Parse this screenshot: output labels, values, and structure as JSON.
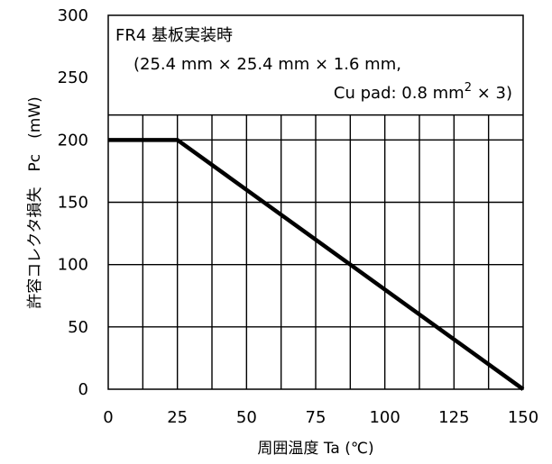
{
  "chart_data": {
    "type": "line",
    "xlabel": "周囲温度 Ta (℃)",
    "ylabel": "許容コレクタ損失　Pc　(mW)",
    "xlim": [
      0,
      150
    ],
    "ylim": [
      0,
      300
    ],
    "xticks": [
      0,
      25,
      50,
      75,
      100,
      125,
      150
    ],
    "yticks": [
      0,
      50,
      100,
      150,
      200,
      250,
      300
    ],
    "x_minor_gridlines": [
      12.5,
      25,
      37.5,
      50,
      62.5,
      75,
      87.5,
      100,
      112.5,
      125,
      137.5
    ],
    "grid": true,
    "grid_y_max": 220,
    "series": [
      {
        "x": [
          0,
          25,
          150
        ],
        "y": [
          200,
          200,
          0
        ]
      }
    ],
    "annotation": {
      "line1": "FR4 基板実装時",
      "line2": "(25.4 mm × 25.4 mm × 1.6 mm,",
      "line3a": "Cu pad: 0.8 mm",
      "line3sup": "2",
      "line3b": " × 3)"
    }
  }
}
